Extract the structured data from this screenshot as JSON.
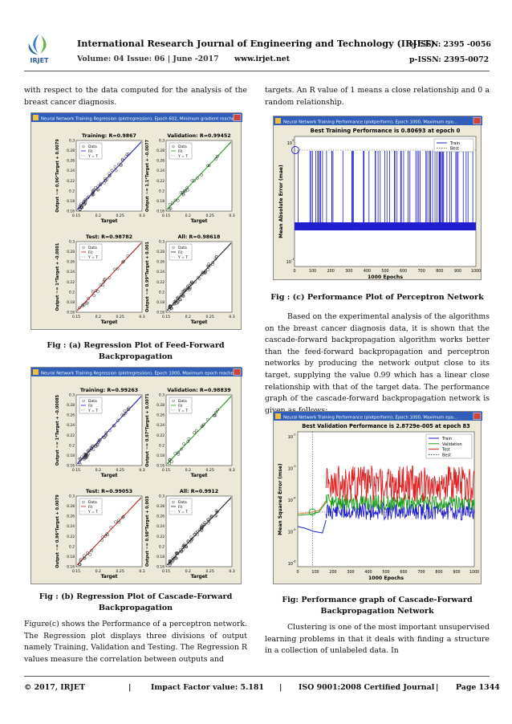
{
  "header": {
    "journal_title": "International Research Journal of Engineering and Technology (IRJET)",
    "eissn": "e-ISSN: 2395 -0056",
    "volume": "Volume: 04 Issue: 06 | June -2017",
    "website": "www.irjet.net",
    "pissn": "p-ISSN: 2395-0072",
    "logo_text": "IRJET"
  },
  "left_column": {
    "intro": "with respect to the data computed for the analysis of the breast cancer diagnosis.",
    "caption_a_line1": "Fig : (a) Regression Plot of Feed-Forward",
    "caption_a_line2": "Backpropagation",
    "caption_b_line1": "Fig : (b) Regression Plot of Cascade-Forward",
    "caption_b_line2": "Backpropagation",
    "para_c": "Figure(c) shows the Performance of a perceptron network. The Regression plot displays three divisions of output namely Training, Validation and Testing. The Regression R values measure the correlation between outputs and"
  },
  "right_column": {
    "intro": "targets. An R value of 1 means a close relationship and 0 a random relationship.",
    "caption_c": "Fig : (c) Performance Plot of Perceptron Network",
    "para_analysis": "Based on the experimental analysis of the algorithms on the breast cancer diagnosis data, it is shown that the cascade-forward backpropagation algorithm works better than the feed-forward backpropagation and perceptron networks by producing the network output close to its target, supplying the value 0.99 which has a linear close relationship with that of the target data. The performance graph of the cascade-forward backpropagation network is given as follows:",
    "caption_d_line1": "Fig: Performance graph of Cascade-Forward",
    "caption_d_line2": "Backpropagation Network",
    "para_clustering": "Clustering is one of the most important unsupervised learning problems in that it deals with finding a structure in a collection of unlabeled data. In"
  },
  "figure_a": {
    "window_title": "Neural Network Training Regression (plotregression), Epoch 602, Minimum gradient reached.",
    "panels": [
      {
        "title": "Training: R=0.9867",
        "ylabel": "Output ~= 0.96*Target + 0.0079",
        "color": "#1f1fcf"
      },
      {
        "title": "Validation: R=0.99452",
        "ylabel": "Output ~= 1.1*Target + -0.0077",
        "color": "#1e9e1e"
      },
      {
        "title": "Test: R=0.98782",
        "ylabel": "Output ~= 1*Target + -0.0001",
        "color": "#c81e1e"
      },
      {
        "title": "All: R=0.98618",
        "ylabel": "Output ~= 0.99*Target + 0.001",
        "color": "#222222"
      }
    ]
  },
  "figure_b": {
    "window_title": "Neural Network Training Regression (plotregression), Epoch 1000, Maximum epoch reached.",
    "panels": [
      {
        "title": "Training: R=0.99263",
        "ylabel": "Output ~= 1*Target + -0.00085",
        "color": "#1f1fcf"
      },
      {
        "title": "Validation: R=0.98839",
        "ylabel": "Output ~= 0.97*Target + 0.0071",
        "color": "#1e9e1e"
      },
      {
        "title": "Test: R=0.99053",
        "ylabel": "Output ~= 0.96*Target + 0.0079",
        "color": "#c81e1e"
      },
      {
        "title": "All: R=0.9912",
        "ylabel": "Output ~= 0.98*Target + 0.003",
        "color": "#222222"
      }
    ]
  },
  "regression_common": {
    "xlabel": "Target",
    "legend": [
      "Data",
      "Fit",
      "Y = T"
    ],
    "xticks": [
      "0.15",
      "0.2",
      "0.25",
      "0.3"
    ],
    "yticks": [
      "0.16",
      "0.18",
      "0.2",
      "0.22",
      "0.24",
      "0.26",
      "0.28",
      "0.3"
    ]
  },
  "figure_c": {
    "window_title": "Neural Network Training Performance (plotperform), Epoch 1000, Maximum epo...",
    "title": "Best Training Performance is 0.80693 at epoch 0",
    "ylabel": "Mean Absolute Error  (mae)",
    "xlabel": "1000 Epochs",
    "legend": [
      "Train",
      "Best"
    ],
    "xticks": [
      "0",
      "100",
      "200",
      "300",
      "400",
      "500",
      "600",
      "700",
      "800",
      "900",
      "1000"
    ],
    "ytick_top": "10",
    "ytick_top_exp": "0",
    "ytick_bottom": "10",
    "ytick_bottom_exp": "-1"
  },
  "figure_d": {
    "window_title": "Neural Network Training Performance (plotperform), Epoch 1000, Maximum epo...",
    "title": "Best Validation Performance is 2.8729e-005 at epoch 83",
    "ylabel": "Mean Squared Error  (mse)",
    "xlabel": "1000 Epochs",
    "legend": [
      "Train",
      "Validation",
      "Test",
      "Best"
    ],
    "xticks": [
      "0",
      "100",
      "200",
      "300",
      "400",
      "500",
      "600",
      "700",
      "800",
      "900",
      "1000"
    ],
    "ytick_base": "10",
    "ytick_exps": [
      "-2",
      "-3",
      "-4",
      "-5",
      "-6"
    ]
  },
  "footer": {
    "copyright": "© 2017, IRJET",
    "impact": "Impact Factor value: 5.181",
    "iso": "ISO 9001:2008 Certified Journal",
    "page": "Page 1344",
    "sep": "|"
  },
  "colors": {
    "train": "#1f1fcf",
    "validation": "#1e9e1e",
    "test": "#e01e1e",
    "window_bg": "#ece9d8",
    "titlebar": "#2f5fb8"
  }
}
